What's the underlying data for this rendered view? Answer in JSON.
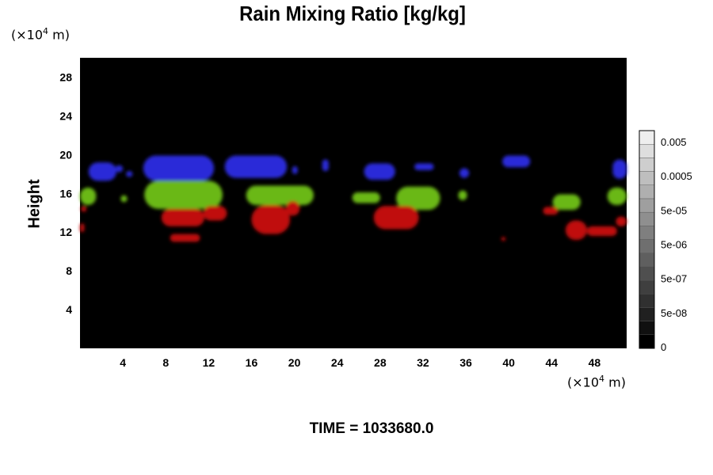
{
  "chart_data": {
    "type": "heatmap",
    "title": "Rain Mixing Ratio [kg/kg]",
    "ylabel": "Height",
    "xlabel": "",
    "x_unit_prefix": "(×10",
    "x_unit_exp": "4",
    "x_unit_suffix": " m)",
    "y_unit_prefix": "(×10",
    "y_unit_exp": "4",
    "y_unit_suffix": " m)",
    "xlim": [
      0,
      51
    ],
    "ylim": [
      0,
      30
    ],
    "x_ticks": [
      4,
      8,
      12,
      16,
      20,
      24,
      28,
      32,
      36,
      40,
      44,
      48
    ],
    "y_ticks": [
      4,
      8,
      12,
      16,
      20,
      24,
      28
    ],
    "background": "#000000",
    "colorbar": {
      "labels": [
        "0.005",
        "0.0005",
        "5e-05",
        "5e-06",
        "5e-07",
        "5e-08",
        "0"
      ],
      "n_levels": 16
    },
    "regions": [
      {
        "layer": "upper",
        "color": "#2a2ad8",
        "blobs": [
          {
            "x0": 0.8,
            "x1": 3.4,
            "y0": 17.3,
            "y1": 19.2
          },
          {
            "x0": 3.3,
            "x1": 4.0,
            "y0": 18.2,
            "y1": 18.9
          },
          {
            "x0": 4.3,
            "x1": 4.9,
            "y0": 17.7,
            "y1": 18.3
          },
          {
            "x0": 5.9,
            "x1": 12.5,
            "y0": 17.3,
            "y1": 19.9
          },
          {
            "x0": 13.5,
            "x1": 19.3,
            "y0": 17.6,
            "y1": 19.9
          },
          {
            "x0": 19.8,
            "x1": 20.3,
            "y0": 18.0,
            "y1": 18.8
          },
          {
            "x0": 22.6,
            "x1": 23.2,
            "y0": 18.3,
            "y1": 19.5
          },
          {
            "x0": 26.5,
            "x1": 29.4,
            "y0": 17.4,
            "y1": 19.1
          },
          {
            "x0": 31.2,
            "x1": 33.0,
            "y0": 18.4,
            "y1": 19.1
          },
          {
            "x0": 35.4,
            "x1": 36.3,
            "y0": 17.6,
            "y1": 18.6
          },
          {
            "x0": 39.4,
            "x1": 42.0,
            "y0": 18.7,
            "y1": 19.9
          },
          {
            "x0": 49.7,
            "x1": 51.0,
            "y0": 17.5,
            "y1": 19.5
          }
        ]
      },
      {
        "layer": "middle",
        "color": "#6ab818",
        "blobs": [
          {
            "x0": 0.0,
            "x1": 1.5,
            "y0": 14.8,
            "y1": 16.6
          },
          {
            "x0": 3.8,
            "x1": 4.4,
            "y0": 15.1,
            "y1": 15.8
          },
          {
            "x0": 6.0,
            "x1": 13.3,
            "y0": 14.4,
            "y1": 17.3
          },
          {
            "x0": 15.5,
            "x1": 21.8,
            "y0": 14.8,
            "y1": 16.8
          },
          {
            "x0": 25.4,
            "x1": 28.0,
            "y0": 15.0,
            "y1": 16.1
          },
          {
            "x0": 29.5,
            "x1": 33.6,
            "y0": 14.3,
            "y1": 16.7
          },
          {
            "x0": 35.3,
            "x1": 36.1,
            "y0": 15.3,
            "y1": 16.3
          },
          {
            "x0": 44.1,
            "x1": 46.7,
            "y0": 14.3,
            "y1": 15.9
          },
          {
            "x0": 49.2,
            "x1": 51.0,
            "y0": 14.8,
            "y1": 16.6
          }
        ]
      },
      {
        "layer": "lower",
        "color": "#c01010",
        "blobs": [
          {
            "x0": 0.0,
            "x1": 0.4,
            "y0": 12.0,
            "y1": 12.9
          },
          {
            "x0": 0.1,
            "x1": 0.6,
            "y0": 14.1,
            "y1": 14.7
          },
          {
            "x0": 7.6,
            "x1": 11.6,
            "y0": 12.6,
            "y1": 14.4
          },
          {
            "x0": 8.4,
            "x1": 11.2,
            "y0": 11.0,
            "y1": 11.8
          },
          {
            "x0": 11.5,
            "x1": 13.7,
            "y0": 13.2,
            "y1": 14.7
          },
          {
            "x0": 16.0,
            "x1": 19.6,
            "y0": 11.8,
            "y1": 14.8
          },
          {
            "x0": 19.2,
            "x1": 20.5,
            "y0": 13.7,
            "y1": 15.2
          },
          {
            "x0": 27.4,
            "x1": 31.6,
            "y0": 12.3,
            "y1": 14.7
          },
          {
            "x0": 39.3,
            "x1": 39.7,
            "y0": 11.1,
            "y1": 11.5
          },
          {
            "x0": 43.2,
            "x1": 44.6,
            "y0": 13.8,
            "y1": 14.6
          },
          {
            "x0": 45.3,
            "x1": 47.3,
            "y0": 11.2,
            "y1": 13.2
          },
          {
            "x0": 47.3,
            "x1": 50.1,
            "y0": 11.6,
            "y1": 12.6
          },
          {
            "x0": 50.0,
            "x1": 51.0,
            "y0": 12.6,
            "y1": 13.6
          }
        ]
      }
    ]
  },
  "footer": {
    "time_label": "TIME = 1033680.0"
  }
}
